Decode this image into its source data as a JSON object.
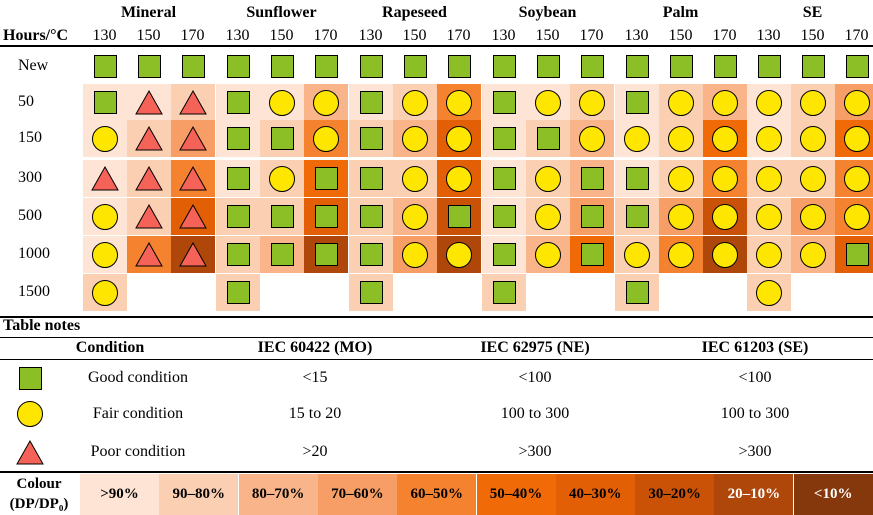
{
  "header": {
    "corner_label": "Hours/°C",
    "oils": [
      "Mineral",
      "Sunflower",
      "Rapeseed",
      "Soybean",
      "Palm",
      "SE"
    ],
    "temperatures": [
      "130",
      "150",
      "170"
    ]
  },
  "rows": [
    {
      "label": "New",
      "cells": [
        [
          "S",
          "S",
          "S"
        ],
        [
          "S",
          "S",
          "S"
        ],
        [
          "S",
          "S",
          "S"
        ],
        [
          "S",
          "S",
          "S"
        ],
        [
          "S",
          "S",
          "S"
        ],
        [
          "S",
          "S",
          "S"
        ]
      ],
      "colours": [
        [
          -1,
          -1,
          -1
        ],
        [
          -1,
          -1,
          -1
        ],
        [
          -1,
          -1,
          -1
        ],
        [
          -1,
          -1,
          -1
        ],
        [
          -1,
          -1,
          -1
        ],
        [
          -1,
          -1,
          -1
        ]
      ]
    },
    {
      "label": "50",
      "cells": [
        [
          "S",
          "T",
          "T"
        ],
        [
          "S",
          "C",
          "C"
        ],
        [
          "S",
          "C",
          "C"
        ],
        [
          "S",
          "C",
          "C"
        ],
        [
          "S",
          "C",
          "C"
        ],
        [
          "C",
          "C",
          "C"
        ]
      ],
      "colours": [
        [
          0,
          0,
          1
        ],
        [
          0,
          0,
          2
        ],
        [
          0,
          1,
          4
        ],
        [
          0,
          0,
          1
        ],
        [
          0,
          1,
          2
        ],
        [
          0,
          1,
          3
        ]
      ]
    },
    {
      "label": "150",
      "cells": [
        [
          "C",
          "T",
          "T"
        ],
        [
          "S",
          "S",
          "C"
        ],
        [
          "S",
          "C",
          "C"
        ],
        [
          "S",
          "S",
          "C"
        ],
        [
          "C",
          "C",
          "C"
        ],
        [
          "C",
          "C",
          "C"
        ]
      ],
      "colours": [
        [
          0,
          1,
          3
        ],
        [
          0,
          1,
          4
        ],
        [
          1,
          2,
          6
        ],
        [
          0,
          1,
          2
        ],
        [
          0,
          1,
          5
        ],
        [
          0,
          1,
          5
        ]
      ]
    },
    {
      "label": "300",
      "cells": [
        [
          "T",
          "T",
          "T"
        ],
        [
          "S",
          "C",
          "S"
        ],
        [
          "S",
          "C",
          "C"
        ],
        [
          "S",
          "C",
          "S"
        ],
        [
          "S",
          "C",
          "C"
        ],
        [
          "C",
          "C",
          "C"
        ]
      ],
      "colours": [
        [
          0,
          1,
          4
        ],
        [
          0,
          1,
          5
        ],
        [
          1,
          1,
          6
        ],
        [
          0,
          1,
          2
        ],
        [
          0,
          1,
          4
        ],
        [
          1,
          1,
          4
        ]
      ]
    },
    {
      "label": "500",
      "cells": [
        [
          "C",
          "T",
          "T"
        ],
        [
          "S",
          "S",
          "S"
        ],
        [
          "S",
          "C",
          "S"
        ],
        [
          "S",
          "C",
          "S"
        ],
        [
          "S",
          "C",
          "C"
        ],
        [
          "C",
          "C",
          "C"
        ]
      ],
      "colours": [
        [
          0,
          1,
          6
        ],
        [
          1,
          1,
          6
        ],
        [
          1,
          2,
          7
        ],
        [
          0,
          1,
          3
        ],
        [
          1,
          3,
          7
        ],
        [
          1,
          3,
          4
        ]
      ]
    },
    {
      "label": "1000",
      "cells": [
        [
          "C",
          "T",
          "T"
        ],
        [
          "S",
          "S",
          "S"
        ],
        [
          "S",
          "C",
          "C"
        ],
        [
          "S",
          "C",
          "S"
        ],
        [
          "C",
          "C",
          "C"
        ],
        [
          "C",
          "C",
          "S"
        ]
      ],
      "colours": [
        [
          0,
          4,
          8
        ],
        [
          1,
          2,
          8
        ],
        [
          1,
          3,
          8
        ],
        [
          0,
          2,
          5
        ],
        [
          1,
          4,
          8
        ],
        [
          1,
          2,
          6
        ]
      ]
    },
    {
      "label": "1500",
      "cells": [
        [
          "C",
          null,
          null
        ],
        [
          "S",
          null,
          null
        ],
        [
          "S",
          null,
          null
        ],
        [
          "S",
          null,
          null
        ],
        [
          "S",
          null,
          null
        ],
        [
          "C",
          null,
          null
        ]
      ],
      "colours": [
        [
          1,
          -1,
          -1
        ],
        [
          1,
          -1,
          -1
        ],
        [
          1,
          -1,
          -1
        ],
        [
          1,
          -1,
          -1
        ],
        [
          1,
          -1,
          -1
        ],
        [
          1,
          -1,
          -1
        ]
      ]
    }
  ],
  "notes": {
    "title": "Table notes",
    "headers": {
      "condition": "Condition",
      "std1": "IEC 60422 (MO)",
      "std2": "IEC 62975 (NE)",
      "std3": "IEC 61203 (SE)"
    },
    "conditions": [
      {
        "symbol": "square",
        "label": "Good condition",
        "std1": "<15",
        "std2": "<100",
        "std3": "<100"
      },
      {
        "symbol": "circle",
        "label": "Fair condition",
        "std1": "15 to 20",
        "std2": "100 to 300",
        "std3": "100 to 300"
      },
      {
        "symbol": "triangle",
        "label": "Poor condition",
        "std1": ">20",
        "std2": ">300",
        "std3": ">300"
      }
    ]
  },
  "legend": {
    "label_line1": "Colour",
    "label_line2": "(DP/DP₀)",
    "items": [
      ">90%",
      "90–80%",
      "80–70%",
      "70–60%",
      "60–50%",
      "50–40%",
      "40–30%",
      "30–20%",
      "20–10%",
      "<10%"
    ],
    "colors": [
      "#fde4d4",
      "#fbcfb2",
      "#f9b48a",
      "#f79e66",
      "#f5822e",
      "#f06a08",
      "#e35f06",
      "#c95206",
      "#b0470a",
      "#86380d"
    ]
  },
  "symbol_colors": {
    "square": "#8cbf26",
    "circle": "#ffe600",
    "triangle": "#f56258"
  }
}
